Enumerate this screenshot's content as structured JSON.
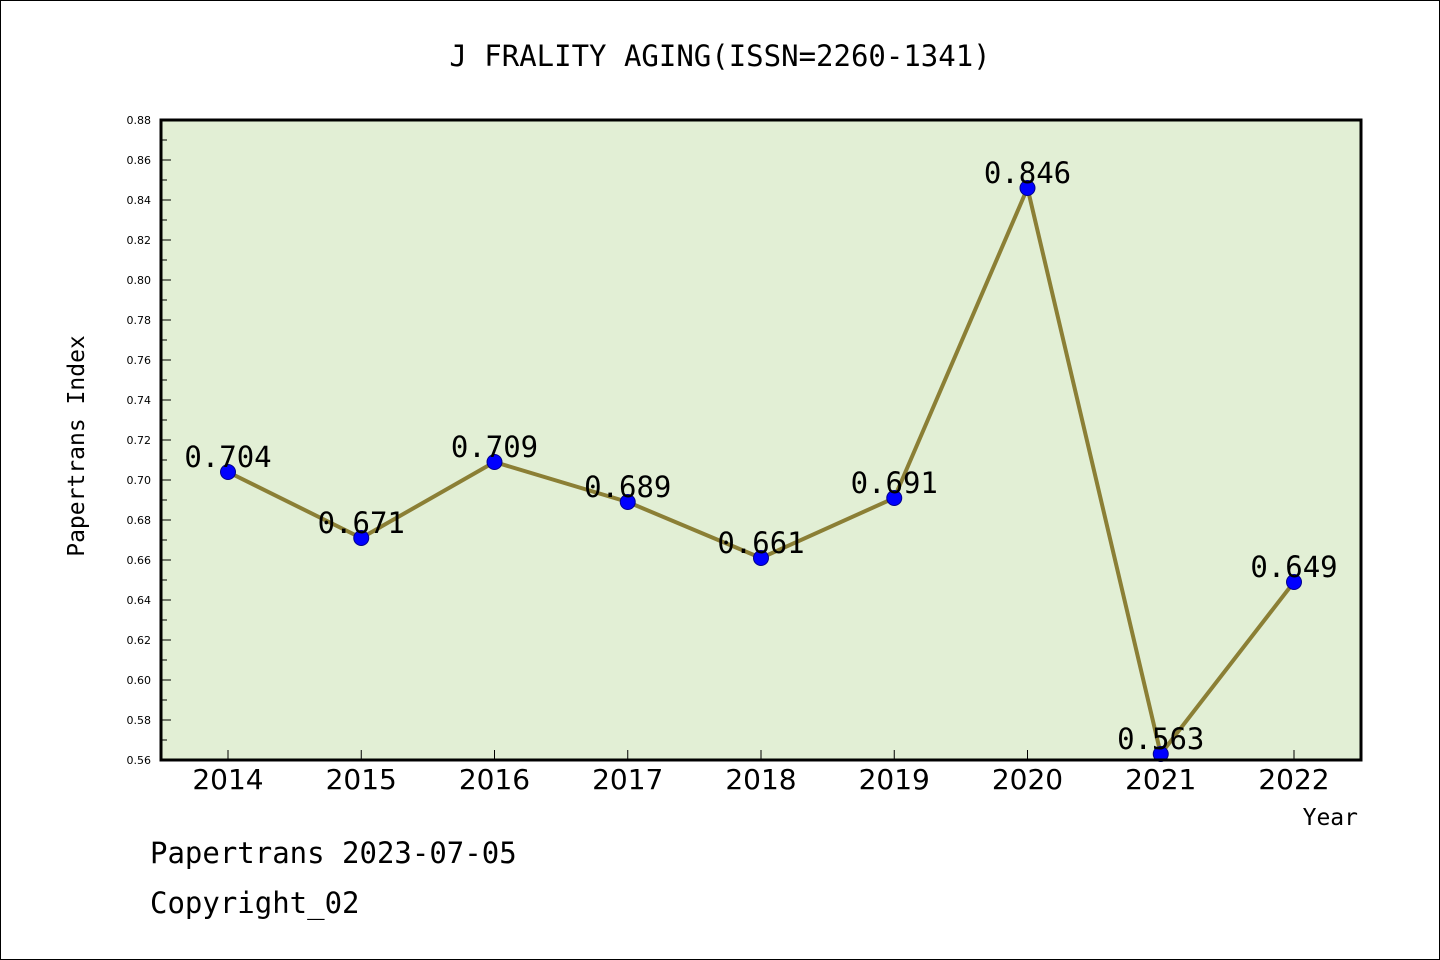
{
  "chart_data": {
    "type": "line",
    "title": "J FRALITY AGING(ISSN=2260-1341)",
    "xlabel": "Year",
    "ylabel": "Papertrans Index",
    "categories": [
      "2014",
      "2015",
      "2016",
      "2017",
      "2018",
      "2019",
      "2020",
      "2021",
      "2022"
    ],
    "series": [
      {
        "values": [
          0.704,
          0.671,
          0.709,
          0.689,
          0.661,
          0.691,
          0.846,
          0.563,
          0.649
        ]
      }
    ],
    "data_labels": [
      "0.704",
      "0.671",
      "0.709",
      "0.689",
      "0.661",
      "0.691",
      "0.846",
      "0.563",
      "0.649"
    ],
    "ylim": [
      0.56,
      0.88
    ],
    "yticks": [
      "0.56",
      "0.58",
      "0.60",
      "0.62",
      "0.64",
      "0.66",
      "0.68",
      "0.70",
      "0.72",
      "0.74",
      "0.76",
      "0.78",
      "0.80",
      "0.82",
      "0.84",
      "0.86",
      "0.88"
    ],
    "grid": false,
    "colors": {
      "plot_background": "#e2efd5",
      "line": "#8b7f35",
      "marker": "#0000ff",
      "marker_edge": "#00008b"
    }
  },
  "footer": {
    "date_line": "Papertrans 2023-07-05",
    "copyright_line": "Copyright_02"
  }
}
